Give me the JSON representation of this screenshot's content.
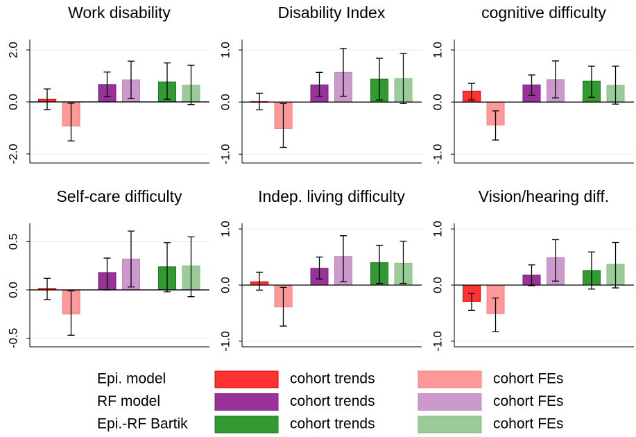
{
  "chart_data": [
    {
      "type": "bar",
      "title": "Work disability",
      "ylim": [
        -2.35,
        2.4
      ],
      "yticks": [
        {
          "value": -2,
          "label": "-2.0"
        },
        {
          "value": 0,
          "label": "0.0"
        },
        {
          "value": 2,
          "label": "2.0"
        }
      ],
      "values": [
        0.1,
        -0.93,
        0.67,
        0.85,
        0.77,
        0.64
      ],
      "lower": [
        -0.3,
        -1.5,
        0.2,
        0.13,
        0.1,
        -0.1
      ],
      "upper": [
        0.5,
        -0.05,
        1.15,
        1.57,
        1.5,
        1.41
      ]
    },
    {
      "type": "bar",
      "title": "Disability Index",
      "ylim": [
        -1.17,
        1.2
      ],
      "yticks": [
        {
          "value": -1,
          "label": "-1.0"
        },
        {
          "value": 0,
          "label": "0.0"
        },
        {
          "value": 1,
          "label": "1.0"
        }
      ],
      "values": [
        0.01,
        -0.51,
        0.33,
        0.57,
        0.44,
        0.45
      ],
      "lower": [
        -0.15,
        -0.87,
        0.11,
        0.11,
        0.04,
        -0.03
      ],
      "upper": [
        0.17,
        -0.03,
        0.57,
        1.03,
        0.84,
        0.93
      ]
    },
    {
      "type": "bar",
      "title": "cognitive difficulty",
      "ylim": [
        -1.17,
        1.2
      ],
      "yticks": [
        {
          "value": -1,
          "label": "-1.0"
        },
        {
          "value": 0,
          "label": "0.0"
        },
        {
          "value": 1,
          "label": "1.0"
        }
      ],
      "values": [
        0.21,
        -0.44,
        0.33,
        0.43,
        0.4,
        0.32
      ],
      "lower": [
        0.04,
        -0.73,
        0.13,
        0.08,
        0.09,
        -0.04
      ],
      "upper": [
        0.36,
        -0.17,
        0.52,
        0.79,
        0.69,
        0.69
      ]
    },
    {
      "type": "bar",
      "title": "Self-care difficulty",
      "ylim": [
        -0.59,
        0.69
      ],
      "yticks": [
        -0.5,
        {
          "value": 0,
          "label": "0.0"
        },
        0.5
      ],
      "values": [
        0.015,
        -0.25,
        0.18,
        0.32,
        0.24,
        0.25
      ],
      "lower": [
        -0.1,
        -0.47,
        0,
        0.03,
        -0.02,
        -0.07
      ],
      "upper": [
        0.12,
        -0.01,
        0.33,
        0.61,
        0.49,
        0.55
      ]
    },
    {
      "type": "bar",
      "title": "Indep. living difficulty",
      "ylim": [
        -1.1,
        1.1
      ],
      "yticks": [
        {
          "value": -1,
          "label": "-1.0"
        },
        {
          "value": 0,
          "label": "0.0"
        },
        {
          "value": 1,
          "label": "1.0"
        }
      ],
      "values": [
        0.06,
        -0.39,
        0.3,
        0.51,
        0.4,
        0.39
      ],
      "lower": [
        -0.09,
        -0.73,
        0.11,
        0.06,
        0.03,
        0.03
      ],
      "upper": [
        0.23,
        -0.04,
        0.5,
        0.88,
        0.71,
        0.78
      ]
    },
    {
      "type": "bar",
      "title": "Vision/hearing diff.",
      "ylim": [
        -1.1,
        1.1
      ],
      "yticks": [
        {
          "value": -1,
          "label": "-1.0"
        },
        {
          "value": 0,
          "label": "0.0"
        },
        {
          "value": 1,
          "label": "1.0"
        }
      ],
      "values": [
        -0.29,
        -0.51,
        0.18,
        0.49,
        0.26,
        0.37
      ],
      "lower": [
        -0.45,
        -0.83,
        -0.01,
        0.07,
        -0.07,
        -0.05
      ],
      "upper": [
        -0.15,
        -0.23,
        0.36,
        0.81,
        0.59,
        0.76
      ]
    }
  ],
  "legend": [
    {
      "group": "Epi. model",
      "name": "cohort trends",
      "color": "#ff3333",
      "edge": "#dd0000"
    },
    {
      "name": "cohort FEs",
      "color": "#ff9999",
      "edge": "#f08080"
    },
    {
      "group": "RF model",
      "name": "cohort trends",
      "color": "#993399",
      "edge": "#7a1a7a"
    },
    {
      "name": "cohort FEs",
      "color": "#cc99cc",
      "edge": "#bb88bb"
    },
    {
      "group": "Epi.-RF Bartik",
      "name": "cohort trends",
      "color": "#339933",
      "edge": "#1f7a1f"
    },
    {
      "name": "cohort FEs",
      "color": "#99cc99",
      "edge": "#88bb88"
    }
  ]
}
